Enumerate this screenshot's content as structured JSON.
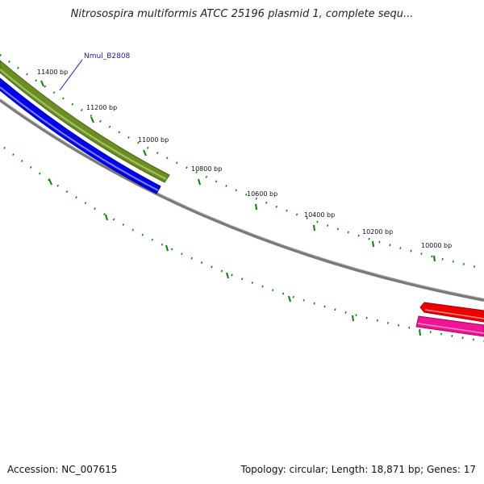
{
  "title": "Nitrosospira multiformis ATCC 25196 plasmid 1, complete sequ...",
  "accession": "Accession: NC_007615",
  "summary": "Topology: circular; Length: 18,871 bp; Genes: 17",
  "gene_label": "Nmul_B2808",
  "tick_labels": [
    "11400 bp",
    "11200 bp",
    "11000 bp",
    "10800 bp",
    "10600 bp",
    "10400 bp",
    "10200 bp",
    "10000 bp"
  ],
  "colors": {
    "backbone": "#7a7a7a",
    "ticks": "#0a7a0a",
    "gene_olive": "#6b8e23",
    "gene_blue": "#0000ee",
    "gene_red": "#ee0000",
    "gene_pink": "#ee1493",
    "label_line": "#1a1aa6"
  }
}
